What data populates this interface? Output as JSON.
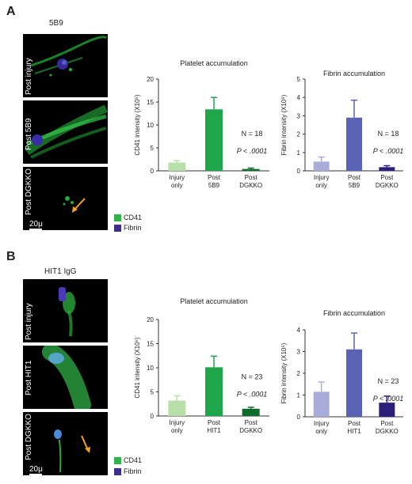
{
  "panels": [
    {
      "letter": "A",
      "title": "5B9",
      "images": [
        {
          "label": "Post injury"
        },
        {
          "label": "Post 5B9"
        },
        {
          "label": "Post DGKKO"
        }
      ],
      "scalebar": "20μ"
    },
    {
      "letter": "B",
      "title": "HIT1 IgG",
      "images": [
        {
          "label": "Post injury"
        },
        {
          "label": "Post HIT1"
        },
        {
          "label": "Post DGKKO"
        }
      ],
      "scalebar": "20μ"
    }
  ],
  "legend": {
    "items": [
      {
        "label": "CD41",
        "color": "#2fb34a"
      },
      {
        "label": "Fibrin",
        "color": "#3a2e8f"
      }
    ]
  },
  "chart_data": [
    {
      "type": "bar",
      "title": "Platelet accumulation",
      "ylabel": "CD41 intensity (X10⁵)",
      "ylim": [
        0,
        20
      ],
      "yticks": [
        0,
        5,
        10,
        15,
        20
      ],
      "categories": [
        [
          "Injury",
          "only"
        ],
        [
          "Post",
          "5B9"
        ],
        [
          "Post",
          "DGKKO"
        ]
      ],
      "values": [
        1.8,
        13.4,
        0.4
      ],
      "errors": [
        0.4,
        2.6,
        0.2
      ],
      "colors": [
        "#b9dfa8",
        "#1fa64b",
        "#0f6b2c"
      ],
      "annotations": {
        "n": "N = 18",
        "p": "P < .0001"
      }
    },
    {
      "type": "bar",
      "title": "Fibrin accumulation",
      "ylabel": "Fibrin intensity (X10⁵)",
      "ylim": [
        0,
        5
      ],
      "yticks": [
        0,
        1,
        2,
        3,
        4,
        5
      ],
      "categories": [
        [
          "Injury",
          "only"
        ],
        [
          "Post",
          "5B9"
        ],
        [
          "Post",
          "DGKKO"
        ]
      ],
      "values": [
        0.5,
        2.9,
        0.2
      ],
      "errors": [
        0.25,
        0.95,
        0.08
      ],
      "colors": [
        "#a7acd9",
        "#5a62b3",
        "#2a1f7a"
      ],
      "annotations": {
        "n": "N = 18",
        "p": "P < .0001"
      }
    },
    {
      "type": "bar",
      "title": "Platelet accumulation",
      "ylabel": "CD41 intensity (X10⁵)",
      "ylim": [
        0,
        20
      ],
      "yticks": [
        0,
        5,
        10,
        15,
        20
      ],
      "categories": [
        [
          "Injury",
          "only"
        ],
        [
          "Post",
          "HIT1"
        ],
        [
          "Post",
          "DGKKO"
        ]
      ],
      "values": [
        3.2,
        10.1,
        1.5
      ],
      "errors": [
        1.0,
        2.3,
        0.3
      ],
      "colors": [
        "#b9dfa8",
        "#1fa64b",
        "#0f6b2c"
      ],
      "annotations": {
        "n": "N = 23",
        "p": "P < .0001"
      }
    },
    {
      "type": "bar",
      "title": "Fibrin accumulation",
      "ylabel": "Fibrin intensity (X10⁵)",
      "ylim": [
        0,
        4
      ],
      "yticks": [
        0,
        1,
        2,
        3,
        4
      ],
      "categories": [
        [
          "Injury",
          "only"
        ],
        [
          "Post",
          "HIT1"
        ],
        [
          "Post",
          "DGKKO"
        ]
      ],
      "values": [
        1.15,
        3.1,
        0.65
      ],
      "errors": [
        0.45,
        0.75,
        0.3
      ],
      "colors": [
        "#a7acd9",
        "#5a62b3",
        "#2a1f7a"
      ],
      "annotations": {
        "n": "N = 23",
        "p": "P < .0001"
      }
    }
  ]
}
